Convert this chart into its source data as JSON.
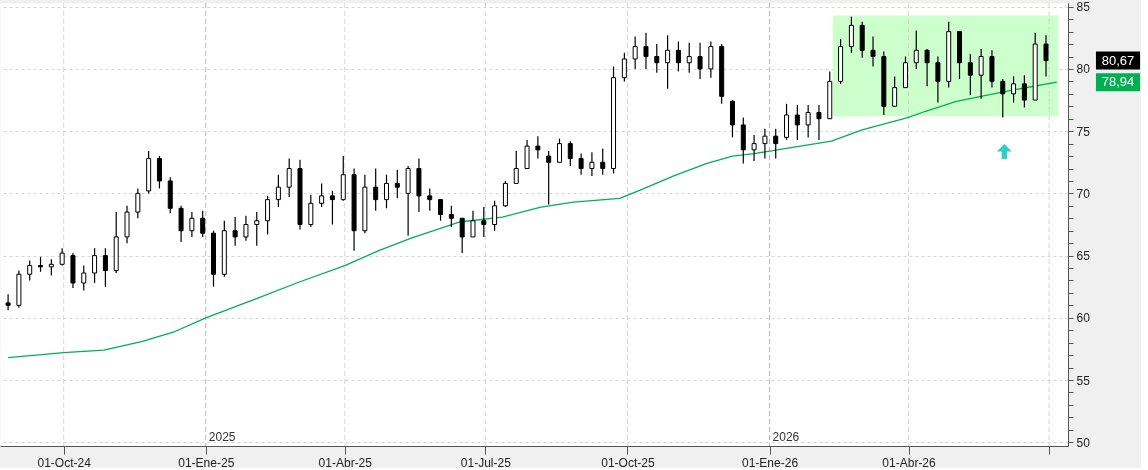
{
  "chart_data": {
    "type": "candlestick",
    "color": "#000000",
    "x": [
      "2024-08-26",
      "2024-09-02",
      "2024-09-09",
      "2024-09-16",
      "2024-09-23",
      "2024-09-30",
      "2024-10-07",
      "2024-10-14",
      "2024-10-21",
      "2024-10-28",
      "2024-11-04",
      "2024-11-11",
      "2024-11-18",
      "2024-11-25",
      "2024-12-02",
      "2024-12-09",
      "2024-12-16",
      "2024-12-23",
      "2024-12-30",
      "2025-01-06",
      "2025-01-13",
      "2025-01-20",
      "2025-01-27",
      "2025-02-03",
      "2025-02-10",
      "2025-02-17",
      "2025-02-24",
      "2025-03-03",
      "2025-03-10",
      "2025-03-17",
      "2025-03-24",
      "2025-03-31",
      "2025-04-07",
      "2025-04-14",
      "2025-04-21",
      "2025-04-28",
      "2025-05-05",
      "2025-05-12",
      "2025-05-19",
      "2025-05-26",
      "2025-06-02",
      "2025-06-09",
      "2025-06-16",
      "2025-06-23",
      "2025-06-30",
      "2025-07-07",
      "2025-07-14",
      "2025-07-21",
      "2025-07-28",
      "2025-08-04",
      "2025-08-11",
      "2025-08-18",
      "2025-08-25",
      "2025-09-01",
      "2025-09-08",
      "2025-09-15",
      "2025-09-22",
      "2025-09-29",
      "2025-10-06",
      "2025-10-13",
      "2025-10-20",
      "2025-10-27",
      "2025-11-03",
      "2025-11-10",
      "2025-11-17",
      "2025-11-24",
      "2025-12-01",
      "2025-12-08",
      "2025-12-15",
      "2025-12-22",
      "2025-12-29",
      "2026-01-05",
      "2026-01-12",
      "2026-01-19",
      "2026-01-26",
      "2026-02-02",
      "2026-02-09",
      "2026-02-16",
      "2026-02-23",
      "2026-03-02",
      "2026-03-09",
      "2026-03-16",
      "2026-03-23",
      "2026-03-30",
      "2026-04-06",
      "2026-04-13",
      "2026-04-20",
      "2026-04-27",
      "2026-05-04",
      "2026-05-11",
      "2026-05-18",
      "2026-05-25",
      "2026-06-01",
      "2026-06-08",
      "2026-06-15",
      "2026-06-22",
      "2026-06-29"
    ],
    "ohlc": [
      [
        61.2,
        61.9,
        60.6,
        61.0
      ],
      [
        61.0,
        63.8,
        60.8,
        63.5
      ],
      [
        63.5,
        64.6,
        63.0,
        64.2
      ],
      [
        64.2,
        64.9,
        63.7,
        64.1
      ],
      [
        64.1,
        64.7,
        63.4,
        64.3
      ],
      [
        64.3,
        65.6,
        64.2,
        65.2
      ],
      [
        65.0,
        65.2,
        62.4,
        62.8
      ],
      [
        62.8,
        64.2,
        62.2,
        63.6
      ],
      [
        63.6,
        65.6,
        62.8,
        65.0
      ],
      [
        65.0,
        65.6,
        62.5,
        63.8
      ],
      [
        63.8,
        68.5,
        63.6,
        66.5
      ],
      [
        66.5,
        69.0,
        66.0,
        68.5
      ],
      [
        68.5,
        70.4,
        68.0,
        70.0
      ],
      [
        70.2,
        73.4,
        70.0,
        72.8
      ],
      [
        72.8,
        73.0,
        70.4,
        71.0
      ],
      [
        71.0,
        71.3,
        68.4,
        68.8
      ],
      [
        68.8,
        69.0,
        66.1,
        67.0
      ],
      [
        67.0,
        68.5,
        66.5,
        68.0
      ],
      [
        68.0,
        68.6,
        66.5,
        66.8
      ],
      [
        66.8,
        67.0,
        62.5,
        63.5
      ],
      [
        63.5,
        67.8,
        63.3,
        67.0
      ],
      [
        67.0,
        68.1,
        65.8,
        66.5
      ],
      [
        66.5,
        68.2,
        66.2,
        67.5
      ],
      [
        67.5,
        68.5,
        65.8,
        67.8
      ],
      [
        67.8,
        69.8,
        66.7,
        69.5
      ],
      [
        69.5,
        71.5,
        68.9,
        70.5
      ],
      [
        70.5,
        72.8,
        69.7,
        72.0
      ],
      [
        72.0,
        72.7,
        67.1,
        67.5
      ],
      [
        67.5,
        69.9,
        67.3,
        69.2
      ],
      [
        69.2,
        70.8,
        68.9,
        69.8
      ],
      [
        69.8,
        70.2,
        67.5,
        69.5
      ],
      [
        69.5,
        73.0,
        69.4,
        71.5
      ],
      [
        71.5,
        72.0,
        65.4,
        67.0
      ],
      [
        67.0,
        71.5,
        66.8,
        70.5
      ],
      [
        70.5,
        72.0,
        68.6,
        69.5
      ],
      [
        69.5,
        71.5,
        68.8,
        70.8
      ],
      [
        70.8,
        71.9,
        69.6,
        70.5
      ],
      [
        70.0,
        72.2,
        66.6,
        72.0
      ],
      [
        72.0,
        72.8,
        68.5,
        69.8
      ],
      [
        69.8,
        70.4,
        68.6,
        69.5
      ],
      [
        69.5,
        69.5,
        67.8,
        68.3
      ],
      [
        68.3,
        69.0,
        67.3,
        68.0
      ],
      [
        68.0,
        68.0,
        65.2,
        66.5
      ],
      [
        66.5,
        68.6,
        66.5,
        67.8
      ],
      [
        67.8,
        68.9,
        66.5,
        67.5
      ],
      [
        67.5,
        69.4,
        67.0,
        69.0
      ],
      [
        69.0,
        71.0,
        68.9,
        70.8
      ],
      [
        70.8,
        73.4,
        70.8,
        72.0
      ],
      [
        72.0,
        74.3,
        72.0,
        73.8
      ],
      [
        73.8,
        74.6,
        72.8,
        73.5
      ],
      [
        73.0,
        73.4,
        69.1,
        72.5
      ],
      [
        72.5,
        74.4,
        72.5,
        74.0
      ],
      [
        74.0,
        74.2,
        72.2,
        72.8
      ],
      [
        72.8,
        73.2,
        71.5,
        72.0
      ],
      [
        72.0,
        73.3,
        71.4,
        72.5
      ],
      [
        72.5,
        73.6,
        71.5,
        72.0
      ],
      [
        72.0,
        80.2,
        71.6,
        79.3
      ],
      [
        79.3,
        81.3,
        79.0,
        80.8
      ],
      [
        80.8,
        82.6,
        80.0,
        81.8
      ],
      [
        81.8,
        82.9,
        80.0,
        81.0
      ],
      [
        81.0,
        82.0,
        79.7,
        80.5
      ],
      [
        80.5,
        82.7,
        78.4,
        81.5
      ],
      [
        81.5,
        82.2,
        79.8,
        80.5
      ],
      [
        80.5,
        82.1,
        79.7,
        81.0
      ],
      [
        81.0,
        82.1,
        79.2,
        80.0
      ],
      [
        80.0,
        82.2,
        79.3,
        81.8
      ],
      [
        81.8,
        82.0,
        77.2,
        77.8
      ],
      [
        77.4,
        77.5,
        74.5,
        75.5
      ],
      [
        75.5,
        76.1,
        72.4,
        73.5
      ],
      [
        73.5,
        74.7,
        72.6,
        74.0
      ],
      [
        74.0,
        75.2,
        72.8,
        74.6
      ],
      [
        74.6,
        75.2,
        72.8,
        74.0
      ],
      [
        74.5,
        77.2,
        74.3,
        76.3
      ],
      [
        76.3,
        77.1,
        74.3,
        75.5
      ],
      [
        75.5,
        77.1,
        74.5,
        76.5
      ],
      [
        76.5,
        77.1,
        74.3,
        76.0
      ],
      [
        76.0,
        79.8,
        76.0,
        79.0
      ],
      [
        79.0,
        82.4,
        78.8,
        81.8
      ],
      [
        81.8,
        84.2,
        81.3,
        83.5
      ],
      [
        83.5,
        83.8,
        80.9,
        81.5
      ],
      [
        81.5,
        82.6,
        80.2,
        81.0
      ],
      [
        81.0,
        81.4,
        76.3,
        77.0
      ],
      [
        77.0,
        79.4,
        77.0,
        78.5
      ],
      [
        78.5,
        81.0,
        78.5,
        80.5
      ],
      [
        80.5,
        83.1,
        80.0,
        81.5
      ],
      [
        81.5,
        81.6,
        78.6,
        80.5
      ],
      [
        80.5,
        81.0,
        77.3,
        79.0
      ],
      [
        79.0,
        83.8,
        78.5,
        83.0
      ],
      [
        83.0,
        83.0,
        79.2,
        80.5
      ],
      [
        80.5,
        81.2,
        77.9,
        79.5
      ],
      [
        79.5,
        81.6,
        77.6,
        81.0
      ],
      [
        81.0,
        81.5,
        78.5,
        79.0
      ],
      [
        79.0,
        79.2,
        76.1,
        78.0
      ],
      [
        78.0,
        79.4,
        77.3,
        78.8
      ],
      [
        78.8,
        79.5,
        76.9,
        77.5
      ],
      [
        77.5,
        82.9,
        77.5,
        82.0
      ],
      [
        82.0,
        82.7,
        79.4,
        80.67
      ]
    ],
    "series": [
      {
        "type": "line",
        "color": "#00b050",
        "x": [
          "2024-08-26",
          "2024-10-01",
          "2024-10-27",
          "2024-11-21",
          "2024-12-12",
          "2025-01-01",
          "2025-02-02",
          "2025-03-03",
          "2025-04-01",
          "2025-04-23",
          "2025-05-14",
          "2025-06-14",
          "2025-07-12",
          "2025-08-06",
          "2025-08-27",
          "2025-09-26",
          "2025-10-10",
          "2025-10-31",
          "2025-11-21",
          "2025-12-08",
          "2025-12-22",
          "2026-01-11",
          "2026-02-10",
          "2026-03-02",
          "2026-04-01",
          "2026-04-12",
          "2026-05-02",
          "2026-06-03",
          "2026-07-06"
        ],
        "values": [
          56.8,
          57.2,
          57.4,
          58.1,
          58.9,
          60.0,
          61.5,
          62.9,
          64.2,
          65.4,
          66.4,
          67.7,
          68.1,
          68.9,
          69.3,
          69.6,
          70.3,
          71.4,
          72.4,
          73.0,
          73.2,
          73.6,
          74.2,
          75.1,
          76.1,
          76.6,
          77.4,
          78.2,
          78.94
        ]
      },
      {
        "type": "line",
        "color": "#ccffcc",
        "x": [
          "2026-02-11",
          "2026-07-07"
        ],
        "values": [
          null,
          null
        ],
        "lower": [
          76.2,
          76.2
        ],
        "upper": [
          84.3,
          84.3
        ]
      }
    ],
    "xlim": [
      "2024-08-24",
      "2026-07-10"
    ],
    "ylim": [
      49.7,
      85.3
    ],
    "xticks": [
      {
        "value": "2024-10-01",
        "label": "01-Oct-24"
      },
      {
        "value": "2025-01-01",
        "label": "01-Ene-25"
      },
      {
        "value": "2025-04-01",
        "label": "01-Abr-25"
      },
      {
        "value": "2025-07-01",
        "label": "01-Jul-25"
      },
      {
        "value": "2025-10-01",
        "label": "01-Oct-25"
      },
      {
        "value": "2026-01-01",
        "label": "01-Ene-26"
      },
      {
        "value": "2026-04-01",
        "label": "01-Abr-26"
      },
      {
        "value": "2026-07-01",
        "label": null
      }
    ],
    "yticks": [
      50,
      {
        "value": 51,
        "label": null
      },
      {
        "value": 52,
        "label": null
      },
      {
        "value": 53,
        "label": null
      },
      {
        "value": 54,
        "label": null
      },
      55,
      {
        "value": 56,
        "label": null
      },
      {
        "value": 57,
        "label": null
      },
      {
        "value": 58,
        "label": null
      },
      {
        "value": 59,
        "label": null
      },
      60,
      {
        "value": 61,
        "label": null
      },
      {
        "value": 62,
        "label": null
      },
      {
        "value": 63,
        "label": null
      },
      {
        "value": 64,
        "label": null
      },
      65,
      {
        "value": 66,
        "label": null
      },
      {
        "value": 67,
        "label": null
      },
      {
        "value": 68,
        "label": null
      },
      {
        "value": 69,
        "label": null
      },
      70,
      {
        "value": 71,
        "label": null
      },
      {
        "value": 72,
        "label": null
      },
      {
        "value": 73,
        "label": null
      },
      {
        "value": 74,
        "label": null
      },
      75,
      {
        "value": 76,
        "label": null
      },
      {
        "value": 77,
        "label": null
      },
      {
        "value": 78,
        "label": null
      },
      {
        "value": 79,
        "label": null
      },
      80,
      {
        "value": 81,
        "label": null
      },
      {
        "value": 82,
        "label": null
      },
      {
        "value": 83,
        "label": null
      },
      {
        "value": 84,
        "label": null
      },
      85
    ],
    "grid": "y",
    "ref_lines": [
      {
        "axis": "x",
        "value": "2024-10-01",
        "color": "#d6d6d6",
        "line_style": "dashed"
      },
      {
        "axis": "x",
        "value": "2025-01-01",
        "label": "2025",
        "color": "#b4b4b4",
        "line_style": "dashed"
      },
      {
        "axis": "x",
        "value": "2025-04-01",
        "color": "#d6d6d6",
        "line_style": "dashed"
      },
      {
        "axis": "x",
        "value": "2025-07-01",
        "color": "#d6d6d6",
        "line_style": "dashed"
      },
      {
        "axis": "x",
        "value": "2025-10-01",
        "color": "#d6d6d6",
        "line_style": "dashed"
      },
      {
        "axis": "x",
        "value": "2026-01-01",
        "label": "2026",
        "color": "#b4b4b4",
        "line_style": "dashed"
      },
      {
        "axis": "x",
        "value": "2026-04-01",
        "color": "#d6d6d6",
        "line_style": "dashed"
      },
      {
        "axis": "x",
        "value": "2026-07-01",
        "color": "#d6d6d6",
        "line_style": "dashed"
      }
    ],
    "annotations": [
      "80,67",
      "78,94"
    ]
  }
}
